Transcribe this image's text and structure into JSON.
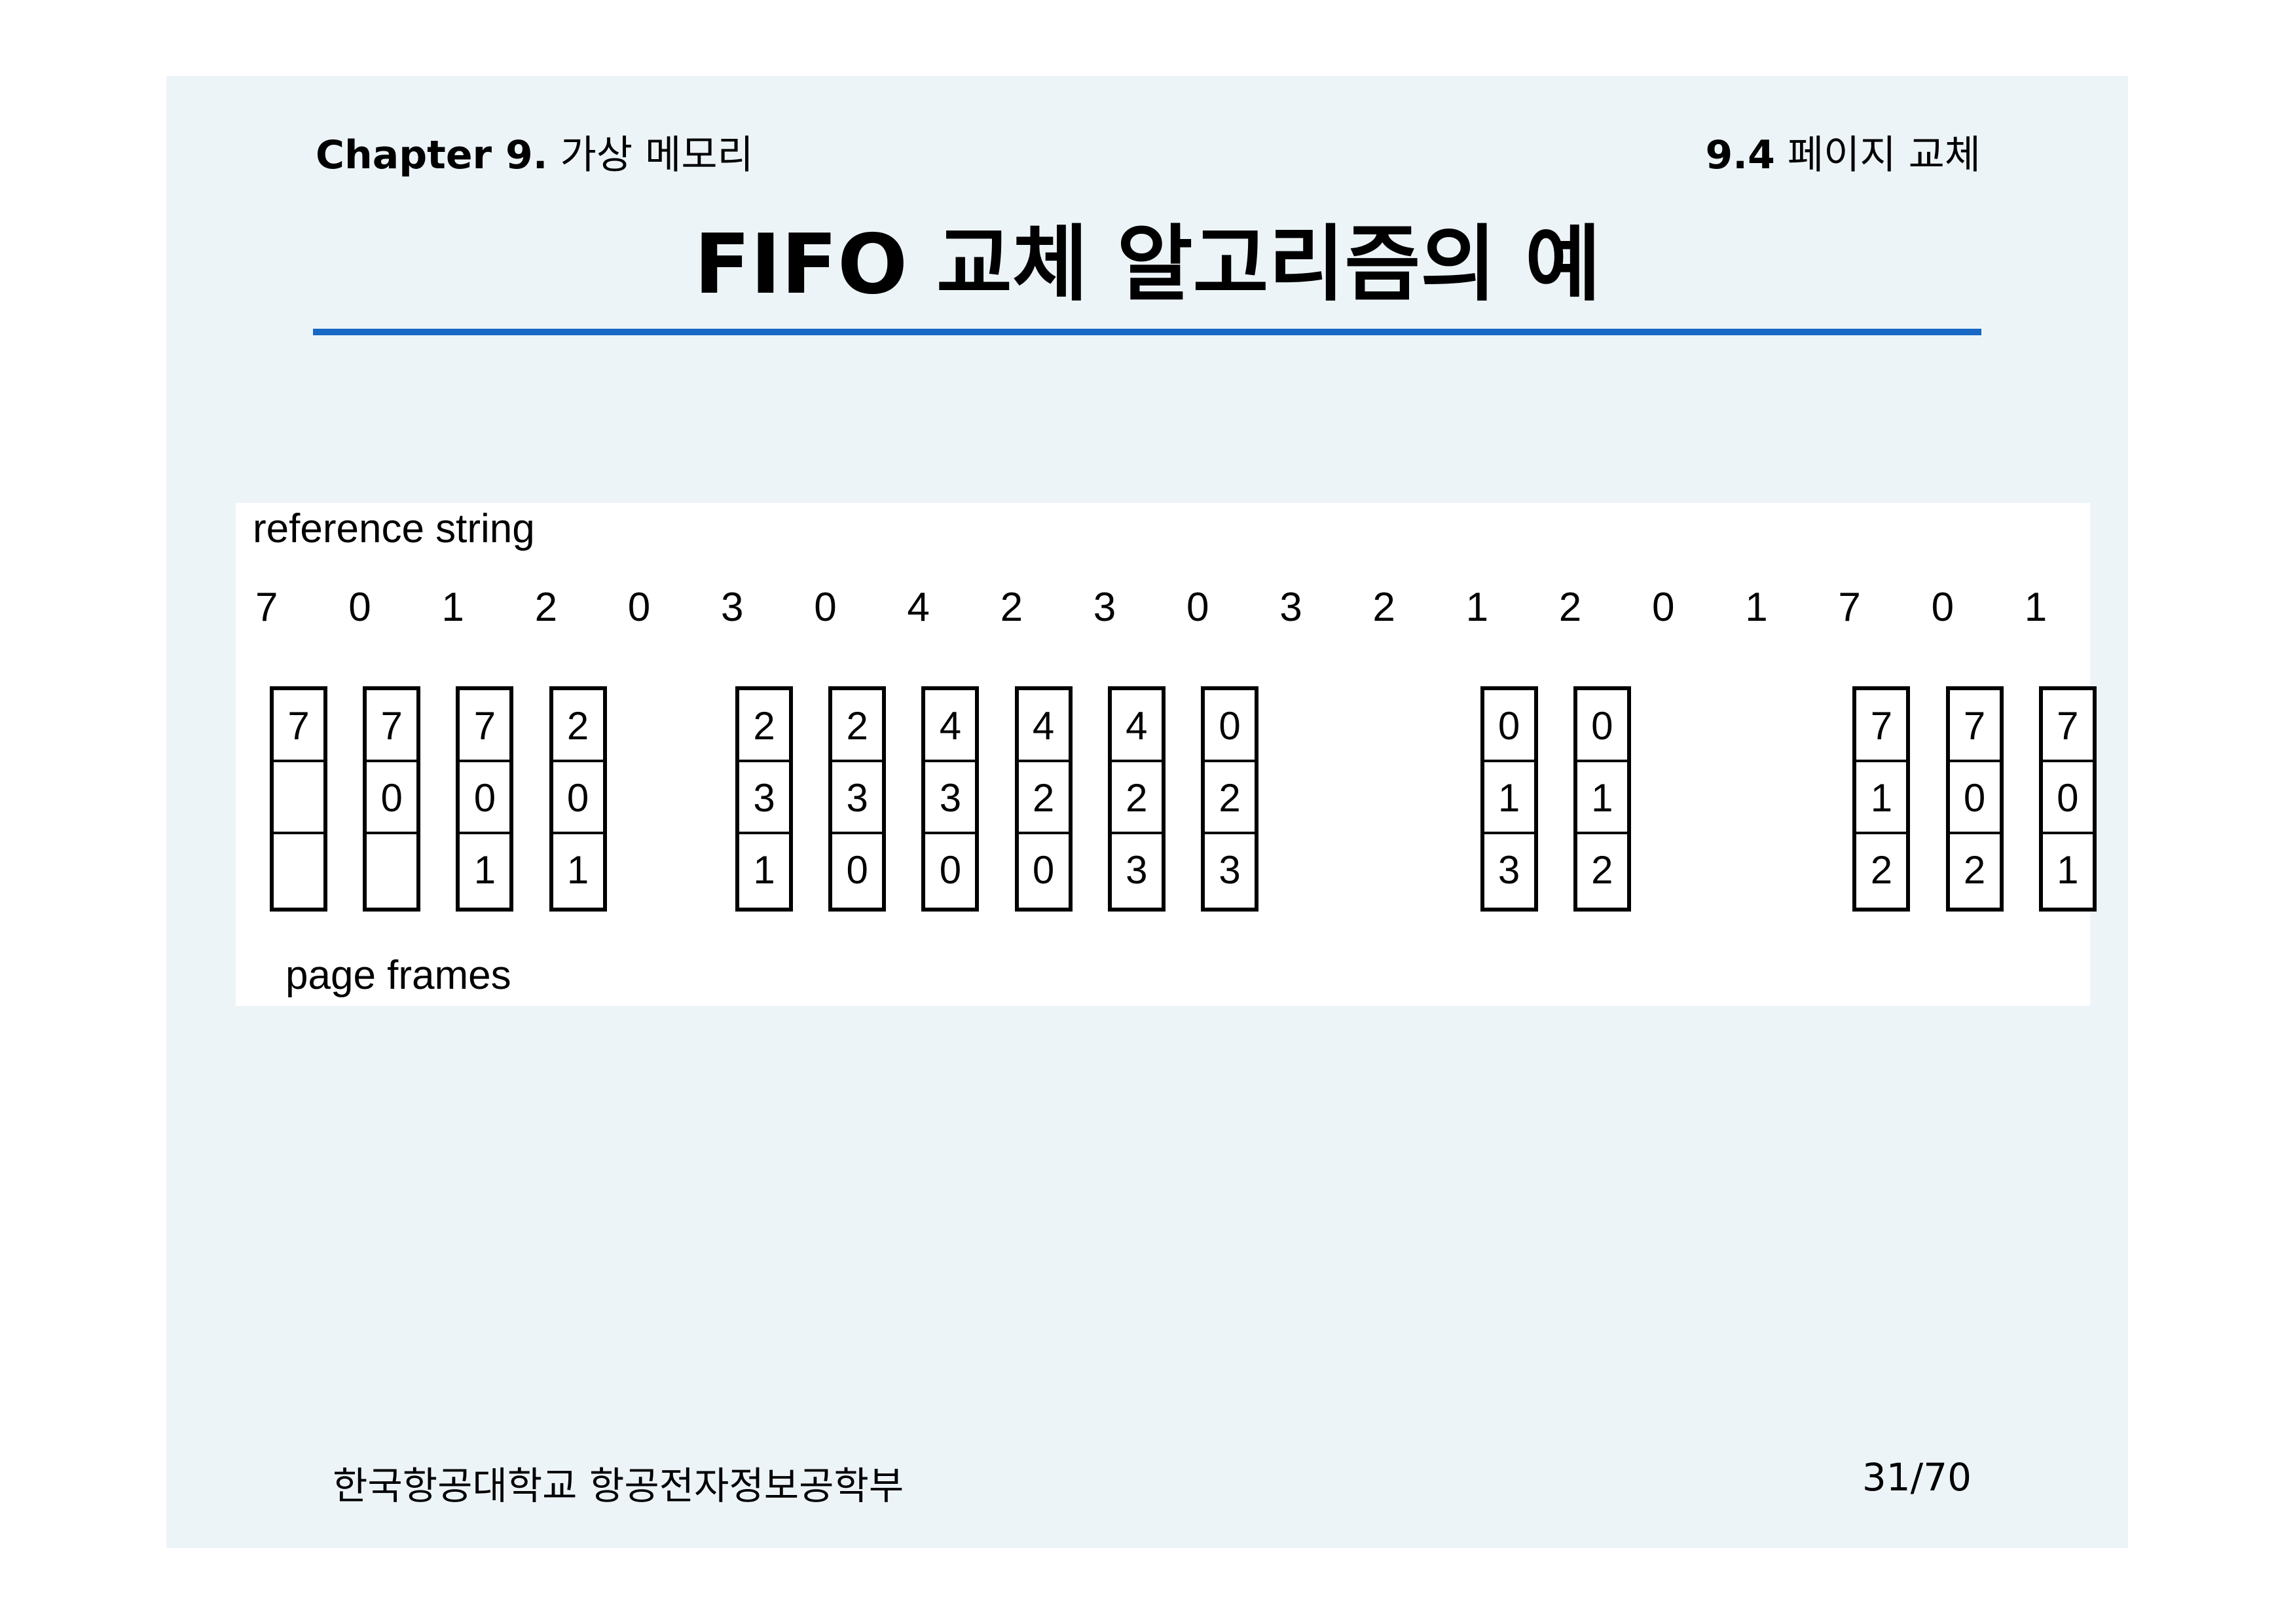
{
  "header": {
    "chapter_bold": "Chapter 9.",
    "chapter_text": "가상 메모리",
    "section_bold": "9.4",
    "section_text": "페이지 교체"
  },
  "title": "FIFO  교체 알고리즘의 예",
  "diagram": {
    "reference_label": "reference string",
    "page_frames_label": "page frames",
    "reference_string": [
      "7",
      "0",
      "1",
      "2",
      "0",
      "3",
      "0",
      "4",
      "2",
      "3",
      "0",
      "3",
      "2",
      "1",
      "2",
      "0",
      "1",
      "7",
      "0",
      "1"
    ],
    "frames": [
      {
        "ref_index": 0,
        "cells": [
          "7",
          "",
          ""
        ]
      },
      {
        "ref_index": 1,
        "cells": [
          "7",
          "0",
          ""
        ]
      },
      {
        "ref_index": 2,
        "cells": [
          "7",
          "0",
          "1"
        ]
      },
      {
        "ref_index": 3,
        "cells": [
          "2",
          "0",
          "1"
        ]
      },
      {
        "ref_index": 5,
        "cells": [
          "2",
          "3",
          "1"
        ]
      },
      {
        "ref_index": 6,
        "cells": [
          "2",
          "3",
          "0"
        ]
      },
      {
        "ref_index": 7,
        "cells": [
          "4",
          "3",
          "0"
        ]
      },
      {
        "ref_index": 8,
        "cells": [
          "4",
          "2",
          "0"
        ]
      },
      {
        "ref_index": 9,
        "cells": [
          "4",
          "2",
          "3"
        ]
      },
      {
        "ref_index": 10,
        "cells": [
          "0",
          "2",
          "3"
        ]
      },
      {
        "ref_index": 13,
        "cells": [
          "0",
          "1",
          "3"
        ]
      },
      {
        "ref_index": 14,
        "cells": [
          "0",
          "1",
          "2"
        ]
      },
      {
        "ref_index": 17,
        "cells": [
          "7",
          "1",
          "2"
        ]
      },
      {
        "ref_index": 18,
        "cells": [
          "7",
          "0",
          "2"
        ]
      },
      {
        "ref_index": 19,
        "cells": [
          "7",
          "0",
          "1"
        ]
      }
    ]
  },
  "footer": {
    "department": "한국항공대학교 항공전자정보공학부",
    "page": "31/70"
  }
}
